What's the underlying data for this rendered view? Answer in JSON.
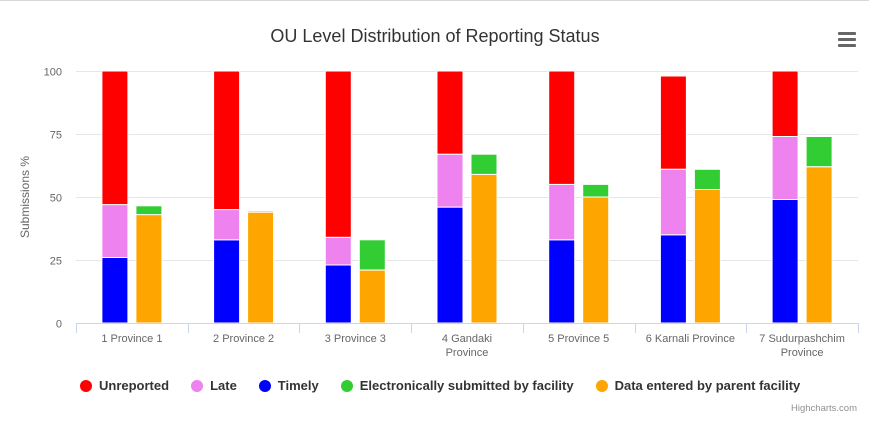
{
  "credits": "Highcharts.com",
  "menu_icon": "hamburger-menu-icon",
  "legend": [
    {
      "label": "Unreported",
      "color": "#ff0000"
    },
    {
      "label": "Late",
      "color": "#ee82ee"
    },
    {
      "label": "Timely",
      "color": "#0000ff"
    },
    {
      "label": "Electronically submitted by facility",
      "color": "#32cd32"
    },
    {
      "label": "Data entered by parent facility",
      "color": "#ffa500"
    }
  ],
  "chart_data": {
    "type": "bar",
    "title": "OU Level Distribution of Reporting Status",
    "ylabel": "Submissions %",
    "ylim": [
      0,
      100
    ],
    "yticks": [
      "0",
      "25",
      "50",
      "75",
      "100"
    ],
    "grid": true,
    "legend_position": "bottom",
    "categories": [
      [
        "1 Province 1"
      ],
      [
        "2 Province 2"
      ],
      [
        "3 Province 3"
      ],
      [
        "4 Gandaki",
        "Province"
      ],
      [
        "5 Province 5"
      ],
      [
        "6 Karnali Province"
      ],
      [
        "7 Sudurpashchim",
        "Province"
      ]
    ],
    "stacks": [
      {
        "name": "",
        "series": [
          {
            "name": "Timely",
            "color": "#0000ff",
            "values": [
              26,
              33,
              23,
              46,
              33,
              35,
              49
            ]
          },
          {
            "name": "Late",
            "color": "#ee82ee",
            "values": [
              21,
              12,
              11,
              21,
              22,
              26,
              25
            ]
          },
          {
            "name": "Unreported",
            "color": "#ff0000",
            "values": [
              53,
              55,
              66,
              33,
              45,
              37,
              26
            ]
          }
        ]
      },
      {
        "name": "",
        "series": [
          {
            "name": "Data entered by parent facility",
            "color": "#ffa500",
            "values": [
              43,
              44,
              21,
              59,
              50,
              53,
              62
            ]
          },
          {
            "name": "Electronically submitted by facility",
            "color": "#32cd32",
            "values": [
              3.5,
              0.5,
              12,
              8,
              5,
              8,
              12
            ]
          }
        ]
      }
    ]
  }
}
